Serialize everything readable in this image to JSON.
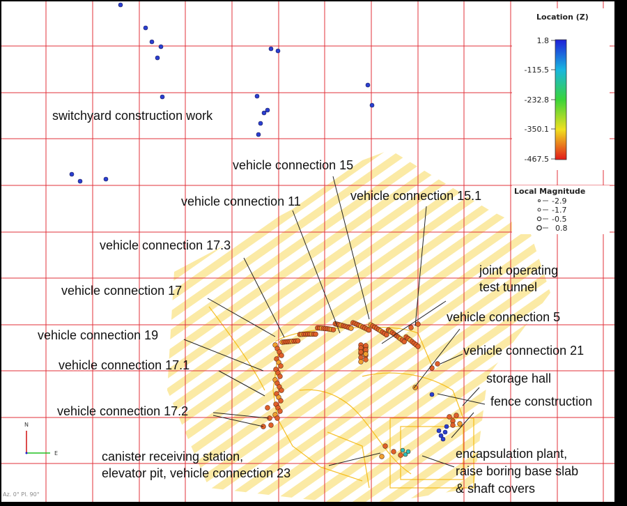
{
  "legend_location": {
    "title": "Location (Z)",
    "ticks": [
      "1.8",
      "-115.5",
      "-232.8",
      "-350.1",
      "-467.5"
    ]
  },
  "legend_magnitude": {
    "title": "Local Magnitude",
    "entries": [
      "-2.9",
      "-1.7",
      "-0.5",
      "0.8"
    ]
  },
  "labels": {
    "switchyard": "switchyard construction work",
    "vc15": "vehicle connection 15",
    "vc11": "vehicle connection 11",
    "vc151": "vehicle connection 15.1",
    "vc173": "vehicle connection 17.3",
    "jott1": "joint operating",
    "jott2": "test tunnel",
    "vc17": "vehicle connection 17",
    "vc5": "vehicle connection 5",
    "vc19": "vehicle connection 19",
    "vc21": "vehicle connection 21",
    "vc171": "vehicle connection 17.1",
    "storage": "storage hall",
    "fence": "fence construction",
    "vc172": "vehicle connection 17.2",
    "crs1": "canister receiving station,",
    "crs2": "elevator pit, vehicle connection 23",
    "enc1": "encapsulation plant,",
    "enc2": "raise boring base slab",
    "enc3": "& shaft covers"
  },
  "orientation": {
    "north": "N",
    "east": "E",
    "status": "Az. 0° Pl. 90°"
  },
  "colors": {
    "grid": "#e0303a",
    "tunnel": "#f7c630",
    "event_shallow": "#2a3fd0",
    "event_deep": "#e0602a"
  }
}
